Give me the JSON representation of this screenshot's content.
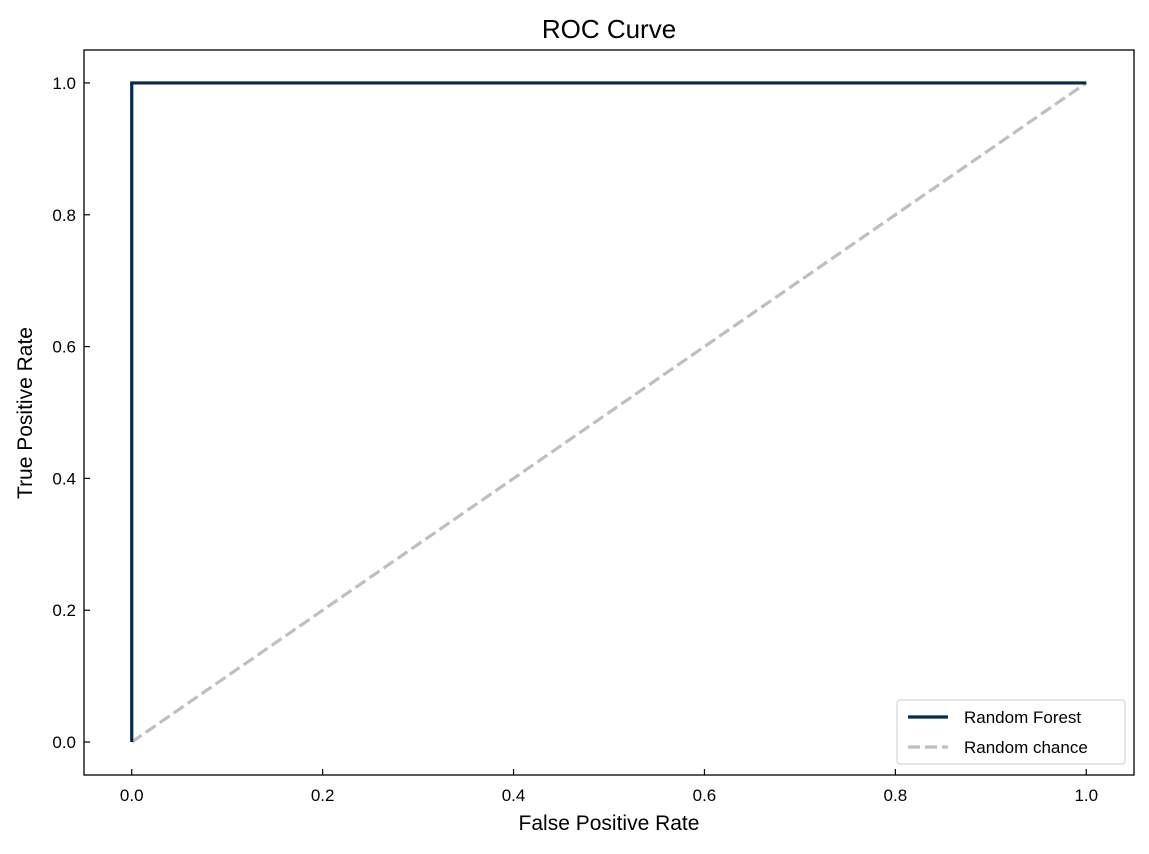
{
  "chart_data": {
    "type": "line",
    "title": "ROC Curve",
    "xlabel": "False Positive Rate",
    "ylabel": "True Positive Rate",
    "xlim": [
      -0.05,
      1.05
    ],
    "ylim": [
      -0.05,
      1.05
    ],
    "xticks": [
      "0.0",
      "0.2",
      "0.4",
      "0.6",
      "0.8",
      "1.0"
    ],
    "yticks": [
      "0.0",
      "0.2",
      "0.4",
      "0.6",
      "0.8",
      "1.0"
    ],
    "grid": false,
    "legend_position": "lower-right",
    "series": [
      {
        "name": "Random Forest",
        "x": [
          0.0,
          0.0,
          1.0
        ],
        "y": [
          0.0,
          1.0,
          1.0
        ],
        "color": "#002b55",
        "style": "solid"
      },
      {
        "name": "Random chance",
        "x": [
          0.0,
          1.0
        ],
        "y": [
          0.0,
          1.0
        ],
        "color": "#bfbfbf",
        "style": "dashed"
      }
    ]
  }
}
